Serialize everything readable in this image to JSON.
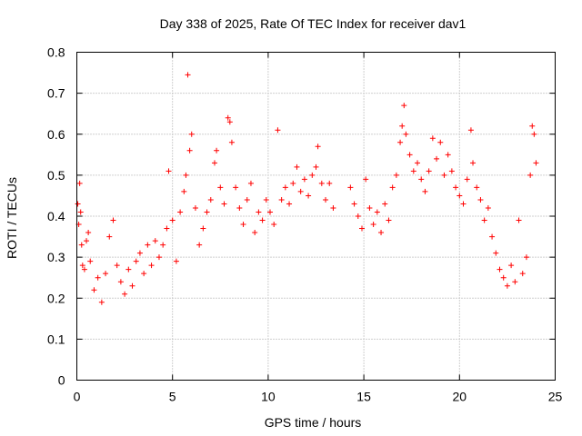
{
  "chart_data": {
    "type": "scatter",
    "title": "Day 338 of 2025, Rate Of TEC Index for receiver dav1",
    "xlabel": "GPS time / hours",
    "ylabel": "ROTI / TECUs",
    "xlim": [
      0,
      25
    ],
    "ylim": [
      0,
      0.8
    ],
    "xticks": [
      0,
      5,
      10,
      15,
      20,
      25
    ],
    "xtick_labels": [
      "0",
      "5",
      "10",
      "15",
      "20",
      "25"
    ],
    "yticks": [
      0,
      0.1,
      0.2,
      0.3,
      0.4,
      0.5,
      0.6,
      0.7,
      0.8
    ],
    "ytick_labels": [
      "0",
      "0.1",
      "0.2",
      "0.3",
      "0.4",
      "0.5",
      "0.6",
      "0.7",
      "0.8"
    ],
    "grid": true,
    "marker": "plus",
    "color": "#ff0000",
    "series": [
      {
        "name": "ROTI",
        "points": [
          [
            0.05,
            0.43
          ],
          [
            0.1,
            0.38
          ],
          [
            0.15,
            0.48
          ],
          [
            0.2,
            0.41
          ],
          [
            0.25,
            0.33
          ],
          [
            0.3,
            0.28
          ],
          [
            0.4,
            0.27
          ],
          [
            0.5,
            0.34
          ],
          [
            0.6,
            0.36
          ],
          [
            0.7,
            0.29
          ],
          [
            0.9,
            0.22
          ],
          [
            1.1,
            0.25
          ],
          [
            1.3,
            0.19
          ],
          [
            1.5,
            0.26
          ],
          [
            1.7,
            0.35
          ],
          [
            1.9,
            0.39
          ],
          [
            2.1,
            0.28
          ],
          [
            2.3,
            0.24
          ],
          [
            2.5,
            0.21
          ],
          [
            2.7,
            0.27
          ],
          [
            2.9,
            0.23
          ],
          [
            3.1,
            0.29
          ],
          [
            3.3,
            0.31
          ],
          [
            3.5,
            0.26
          ],
          [
            3.7,
            0.33
          ],
          [
            3.9,
            0.28
          ],
          [
            4.1,
            0.34
          ],
          [
            4.3,
            0.3
          ],
          [
            4.5,
            0.33
          ],
          [
            4.7,
            0.37
          ],
          [
            4.8,
            0.51
          ],
          [
            5.0,
            0.39
          ],
          [
            5.2,
            0.29
          ],
          [
            5.4,
            0.41
          ],
          [
            5.6,
            0.46
          ],
          [
            5.7,
            0.5
          ],
          [
            5.8,
            0.745
          ],
          [
            5.9,
            0.56
          ],
          [
            6.0,
            0.6
          ],
          [
            6.2,
            0.42
          ],
          [
            6.4,
            0.33
          ],
          [
            6.6,
            0.37
          ],
          [
            6.8,
            0.41
          ],
          [
            7.0,
            0.44
          ],
          [
            7.2,
            0.53
          ],
          [
            7.3,
            0.56
          ],
          [
            7.5,
            0.47
          ],
          [
            7.7,
            0.43
          ],
          [
            7.9,
            0.64
          ],
          [
            8.0,
            0.63
          ],
          [
            8.1,
            0.58
          ],
          [
            8.3,
            0.47
          ],
          [
            8.5,
            0.42
          ],
          [
            8.7,
            0.38
          ],
          [
            8.9,
            0.44
          ],
          [
            9.1,
            0.48
          ],
          [
            9.3,
            0.36
          ],
          [
            9.5,
            0.41
          ],
          [
            9.7,
            0.39
          ],
          [
            9.9,
            0.44
          ],
          [
            10.1,
            0.41
          ],
          [
            10.3,
            0.38
          ],
          [
            10.5,
            0.61
          ],
          [
            10.7,
            0.44
          ],
          [
            10.9,
            0.47
          ],
          [
            11.1,
            0.43
          ],
          [
            11.3,
            0.48
          ],
          [
            11.5,
            0.52
          ],
          [
            11.7,
            0.46
          ],
          [
            11.9,
            0.49
          ],
          [
            12.1,
            0.45
          ],
          [
            12.3,
            0.5
          ],
          [
            12.5,
            0.52
          ],
          [
            12.6,
            0.57
          ],
          [
            12.8,
            0.48
          ],
          [
            13.0,
            0.44
          ],
          [
            13.2,
            0.48
          ],
          [
            13.4,
            0.42
          ],
          [
            14.3,
            0.47
          ],
          [
            14.5,
            0.43
          ],
          [
            14.7,
            0.4
          ],
          [
            14.9,
            0.37
          ],
          [
            15.1,
            0.49
          ],
          [
            15.3,
            0.42
          ],
          [
            15.5,
            0.38
          ],
          [
            15.7,
            0.41
          ],
          [
            15.9,
            0.36
          ],
          [
            16.1,
            0.43
          ],
          [
            16.3,
            0.39
          ],
          [
            16.5,
            0.47
          ],
          [
            16.7,
            0.5
          ],
          [
            16.9,
            0.58
          ],
          [
            17.0,
            0.62
          ],
          [
            17.1,
            0.67
          ],
          [
            17.2,
            0.6
          ],
          [
            17.4,
            0.55
          ],
          [
            17.6,
            0.51
          ],
          [
            17.8,
            0.53
          ],
          [
            18.0,
            0.49
          ],
          [
            18.2,
            0.46
          ],
          [
            18.4,
            0.51
          ],
          [
            18.6,
            0.59
          ],
          [
            18.8,
            0.54
          ],
          [
            19.0,
            0.58
          ],
          [
            19.2,
            0.5
          ],
          [
            19.4,
            0.55
          ],
          [
            19.6,
            0.51
          ],
          [
            19.8,
            0.47
          ],
          [
            20.0,
            0.45
          ],
          [
            20.2,
            0.43
          ],
          [
            20.4,
            0.49
          ],
          [
            20.6,
            0.61
          ],
          [
            20.7,
            0.53
          ],
          [
            20.9,
            0.47
          ],
          [
            21.1,
            0.44
          ],
          [
            21.3,
            0.39
          ],
          [
            21.5,
            0.42
          ],
          [
            21.7,
            0.35
          ],
          [
            21.9,
            0.31
          ],
          [
            22.1,
            0.27
          ],
          [
            22.3,
            0.25
          ],
          [
            22.5,
            0.23
          ],
          [
            22.7,
            0.28
          ],
          [
            22.9,
            0.24
          ],
          [
            23.1,
            0.39
          ],
          [
            23.3,
            0.26
          ],
          [
            23.5,
            0.3
          ],
          [
            23.7,
            0.5
          ],
          [
            23.8,
            0.62
          ],
          [
            23.9,
            0.6
          ],
          [
            24.0,
            0.53
          ]
        ]
      }
    ]
  }
}
